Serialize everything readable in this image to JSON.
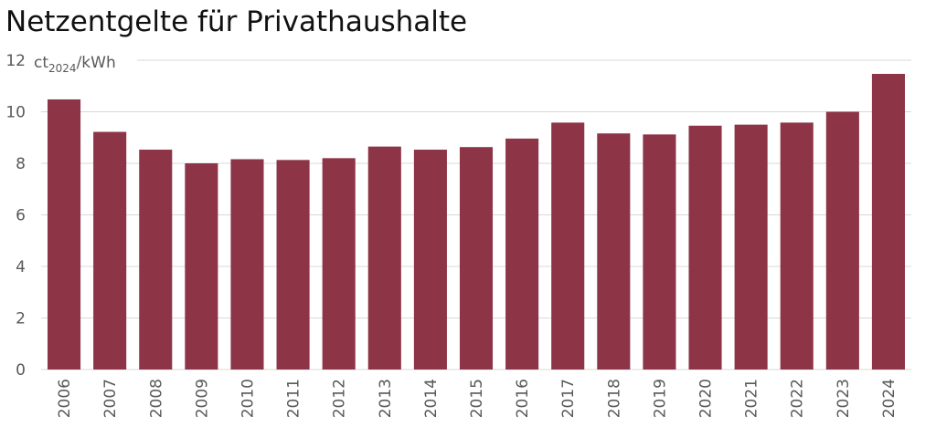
{
  "chart_data": {
    "type": "bar",
    "title": "Netzentgelte für Privathaushalte",
    "unit": {
      "prefix": "ct",
      "subscript": "2024",
      "suffix": "/kWh"
    },
    "categories": [
      "2006",
      "2007",
      "2008",
      "2009",
      "2010",
      "2011",
      "2012",
      "2013",
      "2014",
      "2015",
      "2016",
      "2017",
      "2018",
      "2019",
      "2020",
      "2021",
      "2022",
      "2023",
      "2024"
    ],
    "values": [
      10.48,
      9.22,
      8.53,
      8.0,
      8.16,
      8.13,
      8.2,
      8.65,
      8.53,
      8.63,
      8.96,
      9.58,
      9.16,
      9.12,
      9.46,
      9.5,
      9.58,
      10.0,
      11.47
    ],
    "y_ticks": [
      "0",
      "2",
      "4",
      "6",
      "8",
      "10",
      "12"
    ],
    "ylim": [
      0,
      12
    ],
    "grid": true,
    "colors": {
      "bar": "#8d3447",
      "grid": "#d9d9d9",
      "axis_text": "#595959",
      "title": "#111111"
    }
  }
}
